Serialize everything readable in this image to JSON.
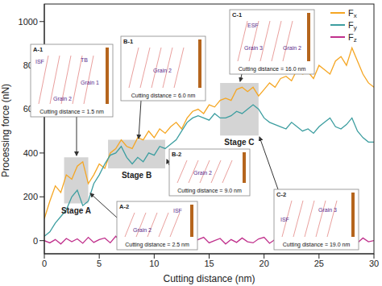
{
  "chart_data": {
    "type": "line",
    "xlabel": "Cutting distance (nm)",
    "ylabel": "Processing force (nN)",
    "xlim": [
      0,
      30
    ],
    "xticks": [
      0,
      5,
      10,
      15,
      20,
      25,
      30
    ],
    "ylim": [
      -60,
      1080
    ],
    "yticks": [
      0,
      200,
      400,
      600,
      800,
      1000
    ],
    "grid": false,
    "legend": "upper right",
    "x": [
      0,
      0.5,
      1,
      1.5,
      2,
      2.5,
      3,
      3.5,
      4,
      4.5,
      5,
      5.5,
      6,
      6.5,
      7,
      7.5,
      8,
      8.5,
      9,
      9.5,
      10,
      10.5,
      11,
      11.5,
      12,
      12.5,
      13,
      13.5,
      14,
      14.5,
      15,
      15.5,
      16,
      16.5,
      17,
      17.5,
      18,
      18.5,
      19,
      19.5,
      20,
      20.5,
      21,
      21.5,
      22,
      22.5,
      23,
      23.5,
      24,
      24.5,
      25,
      25.5,
      26,
      26.5,
      27,
      27.5,
      28,
      28.5,
      29,
      29.5,
      30
    ],
    "series": [
      {
        "name": "Fx",
        "color": "#f5a623",
        "values": [
          100,
          180,
          250,
          220,
          300,
          280,
          340,
          360,
          260,
          300,
          350,
          330,
          400,
          420,
          460,
          430,
          420,
          470,
          460,
          500,
          470,
          510,
          490,
          520,
          540,
          510,
          560,
          590,
          600,
          580,
          620,
          610,
          640,
          650,
          640,
          690,
          700,
          680,
          700,
          660,
          690,
          720,
          700,
          740,
          750,
          730,
          780,
          760,
          770,
          740,
          800,
          780,
          760,
          820,
          840,
          800,
          880,
          820,
          760,
          720,
          700
        ]
      },
      {
        "name": "Fy",
        "color": "#3d9ea0",
        "values": [
          20,
          40,
          80,
          110,
          140,
          200,
          230,
          160,
          180,
          260,
          300,
          350,
          390,
          400,
          430,
          380,
          350,
          380,
          360,
          400,
          390,
          430,
          420,
          440,
          460,
          500,
          540,
          560,
          570,
          560,
          550,
          580,
          560,
          560,
          570,
          590,
          580,
          600,
          620,
          600,
          560,
          540,
          530,
          520,
          510,
          540,
          520,
          500,
          510,
          490,
          520,
          540,
          560,
          520,
          510,
          530,
          560,
          500,
          470,
          450,
          450
        ]
      },
      {
        "name": "Fz",
        "color": "#c0308c",
        "values": [
          0,
          -10,
          5,
          -15,
          10,
          -5,
          8,
          -12,
          15,
          -8,
          5,
          12,
          -10,
          20,
          -5,
          10,
          -15,
          5,
          -8,
          12,
          -10,
          15,
          -20,
          5,
          10,
          -5,
          8,
          -12,
          5,
          15,
          -10,
          0,
          10,
          -15,
          5,
          -8,
          12,
          -5,
          -10,
          8,
          15,
          -12,
          5,
          -5,
          10,
          -15,
          8,
          12,
          -10,
          5,
          -8,
          10,
          -5,
          15,
          -12,
          5,
          8,
          -10,
          12,
          -5,
          0
        ]
      }
    ],
    "stages": [
      {
        "label": "Stage A",
        "x": [
          1.8,
          4
        ],
        "y": [
          170,
          380
        ]
      },
      {
        "label": "Stage B",
        "x": [
          5.8,
          11
        ],
        "y": [
          330,
          460
        ]
      },
      {
        "label": "Stage C",
        "x": [
          16,
          19.5
        ],
        "y": [
          480,
          720
        ]
      }
    ],
    "insets": [
      {
        "label": "A-1",
        "notes": [
          "ISF",
          "TB",
          "Grain 1",
          "Grain 2"
        ],
        "caption": "Cutting distance = 1.5 nm"
      },
      {
        "label": "A-2",
        "notes": [
          "ISF",
          "Grain 2"
        ],
        "caption": "Cutting distance = 2.5 nm"
      },
      {
        "label": "B-1",
        "notes": [
          "Grain 2"
        ],
        "caption": "Cutting distance = 6.0 nm"
      },
      {
        "label": "B-2",
        "notes": [
          "Grain 2"
        ],
        "caption": "Cutting distance = 9.0 nm"
      },
      {
        "label": "C-1",
        "notes": [
          "ESF",
          "Grain 3",
          "Grain 2"
        ],
        "caption": "Cutting distance = 16.0 nm"
      },
      {
        "label": "C-2",
        "notes": [
          "ISF",
          "Grain 3"
        ],
        "caption": "Cutting distance = 19.0 nm"
      }
    ]
  }
}
